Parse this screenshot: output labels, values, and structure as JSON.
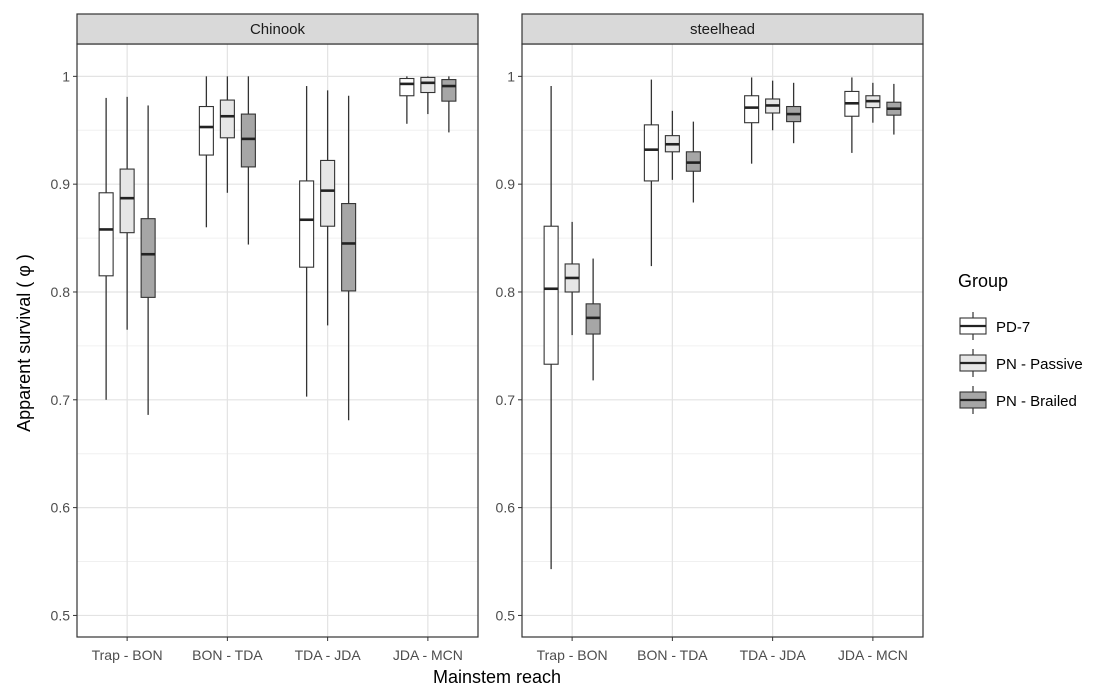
{
  "chart_data": {
    "type": "boxplot",
    "xlabel": "Mainstem reach",
    "ylabel": "Apparent survival ( φ )",
    "ylim": [
      0.48,
      1.03
    ],
    "yticks": [
      0.5,
      0.6,
      0.7,
      0.8,
      0.9,
      1.0
    ],
    "ytick_labels": [
      "0.5",
      "0.6",
      "0.7",
      "0.8",
      "0.9",
      "1"
    ],
    "grid": true,
    "legend": {
      "title": "Group",
      "placement": "right",
      "entries": [
        {
          "name": "PD-7",
          "color": "#ffffff"
        },
        {
          "name": "PN - Passive",
          "color": "#e6e6e6"
        },
        {
          "name": "PN - Brailed",
          "color": "#a6a6a6"
        }
      ]
    },
    "categories": [
      "Trap - BON",
      "BON - TDA",
      "TDA - JDA",
      "JDA - MCN"
    ],
    "panels": [
      {
        "title": "Chinook",
        "series": [
          {
            "name": "PD-7",
            "boxes": [
              {
                "min": 0.7,
                "q1": 0.815,
                "median": 0.858,
                "q3": 0.892,
                "max": 0.98
              },
              {
                "min": 0.86,
                "q1": 0.927,
                "median": 0.953,
                "q3": 0.972,
                "max": 1.0
              },
              {
                "min": 0.703,
                "q1": 0.823,
                "median": 0.867,
                "q3": 0.903,
                "max": 0.991
              },
              {
                "min": 0.956,
                "q1": 0.982,
                "median": 0.993,
                "q3": 0.998,
                "max": 1.0
              }
            ]
          },
          {
            "name": "PN - Passive",
            "boxes": [
              {
                "min": 0.765,
                "q1": 0.855,
                "median": 0.887,
                "q3": 0.914,
                "max": 0.981
              },
              {
                "min": 0.892,
                "q1": 0.943,
                "median": 0.963,
                "q3": 0.978,
                "max": 1.0
              },
              {
                "min": 0.769,
                "q1": 0.861,
                "median": 0.894,
                "q3": 0.922,
                "max": 0.987
              },
              {
                "min": 0.965,
                "q1": 0.985,
                "median": 0.994,
                "q3": 0.999,
                "max": 1.0
              }
            ]
          },
          {
            "name": "PN - Brailed",
            "boxes": [
              {
                "min": 0.686,
                "q1": 0.795,
                "median": 0.835,
                "q3": 0.868,
                "max": 0.973
              },
              {
                "min": 0.844,
                "q1": 0.916,
                "median": 0.942,
                "q3": 0.965,
                "max": 1.0
              },
              {
                "min": 0.681,
                "q1": 0.801,
                "median": 0.845,
                "q3": 0.882,
                "max": 0.982
              },
              {
                "min": 0.948,
                "q1": 0.977,
                "median": 0.991,
                "q3": 0.997,
                "max": 1.0
              }
            ]
          }
        ]
      },
      {
        "title": "steelhead",
        "series": [
          {
            "name": "PD-7",
            "boxes": [
              {
                "min": 0.543,
                "q1": 0.733,
                "median": 0.803,
                "q3": 0.861,
                "max": 0.991
              },
              {
                "min": 0.824,
                "q1": 0.903,
                "median": 0.932,
                "q3": 0.955,
                "max": 0.997
              },
              {
                "min": 0.919,
                "q1": 0.957,
                "median": 0.971,
                "q3": 0.982,
                "max": 0.999
              },
              {
                "min": 0.929,
                "q1": 0.963,
                "median": 0.975,
                "q3": 0.986,
                "max": 0.999
              }
            ]
          },
          {
            "name": "PN - Passive",
            "boxes": [
              {
                "min": 0.76,
                "q1": 0.8,
                "median": 0.813,
                "q3": 0.826,
                "max": 0.865
              },
              {
                "min": 0.904,
                "q1": 0.93,
                "median": 0.937,
                "q3": 0.945,
                "max": 0.968
              },
              {
                "min": 0.95,
                "q1": 0.966,
                "median": 0.973,
                "q3": 0.979,
                "max": 0.996
              },
              {
                "min": 0.957,
                "q1": 0.971,
                "median": 0.977,
                "q3": 0.982,
                "max": 0.994
              }
            ]
          },
          {
            "name": "PN - Brailed",
            "boxes": [
              {
                "min": 0.718,
                "q1": 0.761,
                "median": 0.776,
                "q3": 0.789,
                "max": 0.831
              },
              {
                "min": 0.883,
                "q1": 0.912,
                "median": 0.92,
                "q3": 0.93,
                "max": 0.958
              },
              {
                "min": 0.938,
                "q1": 0.958,
                "median": 0.965,
                "q3": 0.972,
                "max": 0.994
              },
              {
                "min": 0.946,
                "q1": 0.964,
                "median": 0.97,
                "q3": 0.976,
                "max": 0.993
              }
            ]
          }
        ]
      }
    ]
  }
}
